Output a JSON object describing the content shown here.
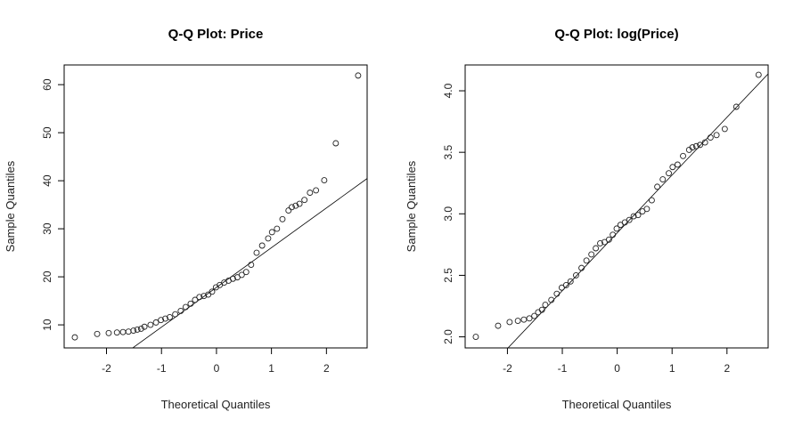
{
  "chart_data": [
    {
      "type": "scatter",
      "title": "Q-Q Plot: Price",
      "xlabel": "Theoretical Quantiles",
      "ylabel": "Sample Quantiles",
      "xlim": [
        -2.77,
        2.74
      ],
      "ylim": [
        5.2,
        64.1
      ],
      "xticks": [
        -2,
        -1,
        0,
        1,
        2
      ],
      "yticks": [
        10,
        20,
        30,
        40,
        50,
        60
      ],
      "grid": false,
      "reference_line": {
        "intercept": 17.8,
        "slope": 8.27
      },
      "x": [
        -2.576,
        -2.17,
        -1.96,
        -1.81,
        -1.7,
        -1.6,
        -1.51,
        -1.44,
        -1.37,
        -1.31,
        -1.2,
        -1.1,
        -1.01,
        -0.93,
        -0.85,
        -0.75,
        -0.65,
        -0.56,
        -0.47,
        -0.39,
        -0.31,
        -0.23,
        -0.15,
        -0.08,
        -0.01,
        0.06,
        0.14,
        0.22,
        0.3,
        0.38,
        0.46,
        0.54,
        0.63,
        0.73,
        0.83,
        0.94,
        1.01,
        1.1,
        1.2,
        1.31,
        1.37,
        1.44,
        1.51,
        1.6,
        1.7,
        1.81,
        1.96,
        2.17,
        2.576
      ],
      "y": [
        7.4,
        8.1,
        8.3,
        8.4,
        8.5,
        8.6,
        8.8,
        9.0,
        9.2,
        9.6,
        10.0,
        10.5,
        11.0,
        11.3,
        11.6,
        12.2,
        12.9,
        13.7,
        14.4,
        15.2,
        15.8,
        16.0,
        16.3,
        16.9,
        17.8,
        18.3,
        18.8,
        19.2,
        19.6,
        19.9,
        20.4,
        21.0,
        22.5,
        25.0,
        26.5,
        28.0,
        29.3,
        30.0,
        32.0,
        33.8,
        34.5,
        34.8,
        35.2,
        36.0,
        37.5,
        38.0,
        40.1,
        47.8,
        61.9
      ]
    },
    {
      "type": "scatter",
      "title": "Q-Q Plot: log(Price)",
      "xlabel": "Theoretical Quantiles",
      "ylabel": "Sample Quantiles",
      "xlim": [
        -2.77,
        2.75
      ],
      "ylim": [
        1.91,
        4.21
      ],
      "xticks": [
        -2,
        -1,
        0,
        1,
        2
      ],
      "yticks": [
        "2.0",
        "2.5",
        "3.0",
        "3.5",
        "4.0"
      ],
      "grid": false,
      "reference_line": {
        "intercept": 2.845,
        "slope": 0.47
      },
      "x": [
        -2.576,
        -2.17,
        -1.96,
        -1.81,
        -1.7,
        -1.6,
        -1.51,
        -1.44,
        -1.37,
        -1.31,
        -1.2,
        -1.1,
        -1.01,
        -0.93,
        -0.85,
        -0.75,
        -0.65,
        -0.56,
        -0.47,
        -0.39,
        -0.31,
        -0.23,
        -0.15,
        -0.08,
        -0.01,
        0.06,
        0.14,
        0.22,
        0.3,
        0.38,
        0.46,
        0.54,
        0.63,
        0.73,
        0.83,
        0.94,
        1.01,
        1.1,
        1.2,
        1.31,
        1.37,
        1.44,
        1.51,
        1.6,
        1.7,
        1.81,
        1.96,
        2.17,
        2.576
      ],
      "y": [
        2.0,
        2.09,
        2.12,
        2.13,
        2.14,
        2.15,
        2.17,
        2.2,
        2.22,
        2.26,
        2.3,
        2.35,
        2.4,
        2.42,
        2.45,
        2.5,
        2.56,
        2.62,
        2.67,
        2.72,
        2.76,
        2.77,
        2.79,
        2.83,
        2.88,
        2.91,
        2.93,
        2.95,
        2.98,
        2.99,
        3.02,
        3.04,
        3.11,
        3.22,
        3.28,
        3.33,
        3.38,
        3.4,
        3.47,
        3.52,
        3.54,
        3.55,
        3.56,
        3.58,
        3.62,
        3.64,
        3.69,
        3.87,
        4.13
      ]
    }
  ]
}
